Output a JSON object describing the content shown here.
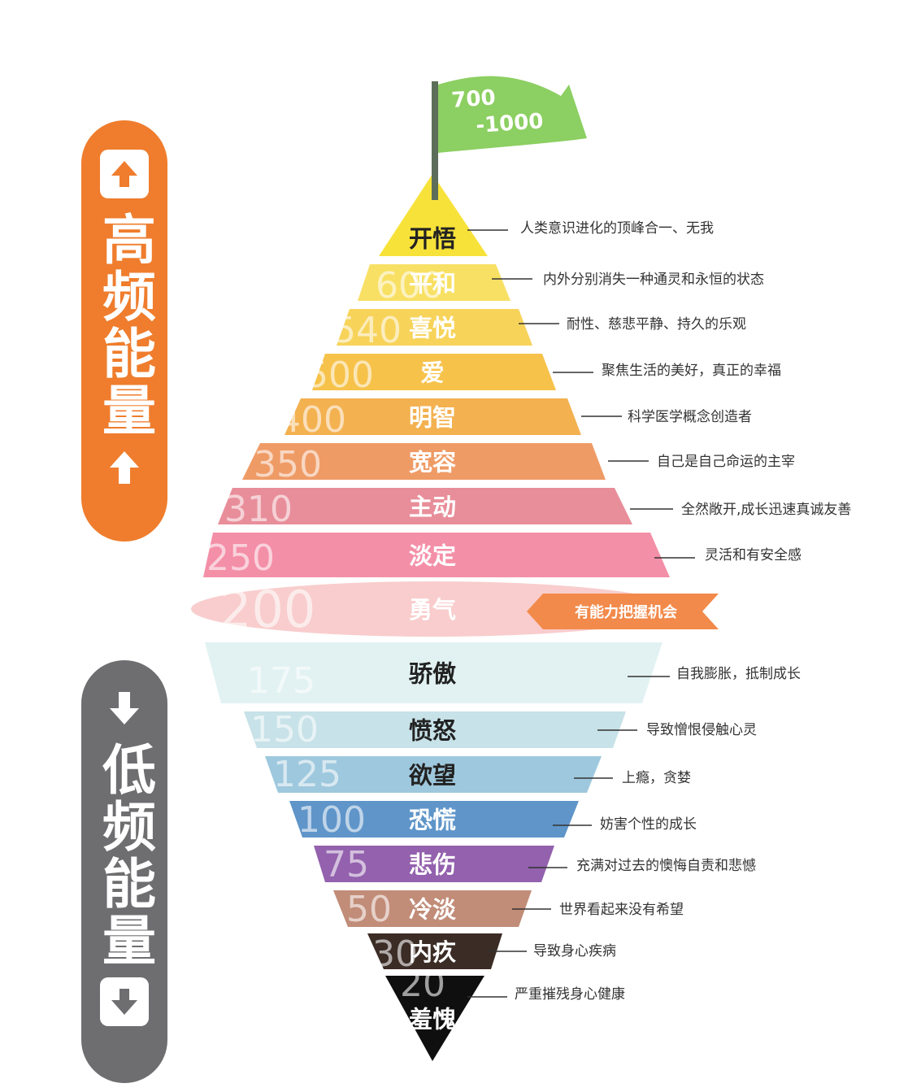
{
  "flag": {
    "line1": "700",
    "line2": "-1000"
  },
  "high_label": "高频能量",
  "low_label": "低频能量",
  "colors": {
    "high_pill": "#ef7d2d",
    "low_pill": "#6e6e70",
    "courage_banner": "#f28a4b",
    "flag": "#8ccf62",
    "pole": "#5c6e59"
  },
  "icons": {
    "high_top": "up-arrow-box-icon",
    "high_bottom": "up-arrow-icon",
    "low_top": "down-arrow-icon",
    "low_bottom": "down-arrow-box-icon"
  },
  "levels": [
    {
      "value": "",
      "name": "开悟",
      "desc": "人类意识进化的顶峰合一、无我",
      "color": "#f7e23a"
    },
    {
      "value": "600",
      "name": "平和",
      "desc": "内外分别消失一种通灵和永恒的状态",
      "color": "#f8e064"
    },
    {
      "value": "540",
      "name": "喜悦",
      "desc": "耐性、慈悲平静、持久的乐观",
      "color": "#f7d35a"
    },
    {
      "value": "500",
      "name": "爱",
      "desc": "聚焦生活的美好，真正的幸福",
      "color": "#f6c24a"
    },
    {
      "value": "400",
      "name": "明智",
      "desc": "科学医学概念创造者",
      "color": "#f3b150"
    },
    {
      "value": "350",
      "name": "宽容",
      "desc": "自己是自己命运的主宰",
      "color": "#ef9b66"
    },
    {
      "value": "310",
      "name": "主动",
      "desc": "全然敞开,成长迅速真诚友善",
      "color": "#e88e9a"
    },
    {
      "value": "250",
      "name": "淡定",
      "desc": "灵活和有安全感",
      "color": "#f48fa8"
    },
    {
      "value": "200",
      "name": "勇气",
      "desc": "有能力把握机会",
      "color": "#f8c4c4"
    },
    {
      "value": "175",
      "name": "骄傲",
      "desc": "自我膨胀，抵制成长",
      "color": "#e2f2f2"
    },
    {
      "value": "150",
      "name": "愤怒",
      "desc": "导致憎恨侵触心灵",
      "color": "#c7e2e8"
    },
    {
      "value": "125",
      "name": "欲望",
      "desc": "上瘾，贪婪",
      "color": "#9ec8dd"
    },
    {
      "value": "100",
      "name": "恐慌",
      "desc": "妨害个性的成长",
      "color": "#5f95c9"
    },
    {
      "value": "75",
      "name": "悲伤",
      "desc": "充满对过去的懊悔自责和悲憾",
      "color": "#9361ad"
    },
    {
      "value": "50",
      "name": "冷淡",
      "desc": "世界看起来没有希望",
      "color": "#c18c78"
    },
    {
      "value": "30",
      "name": "内疚",
      "desc": "导致身心疾病",
      "color": "#3b2c25"
    },
    {
      "value": "20",
      "name": "羞愧",
      "desc": "严重摧残身心健康",
      "color": "#0f0f0f"
    }
  ]
}
